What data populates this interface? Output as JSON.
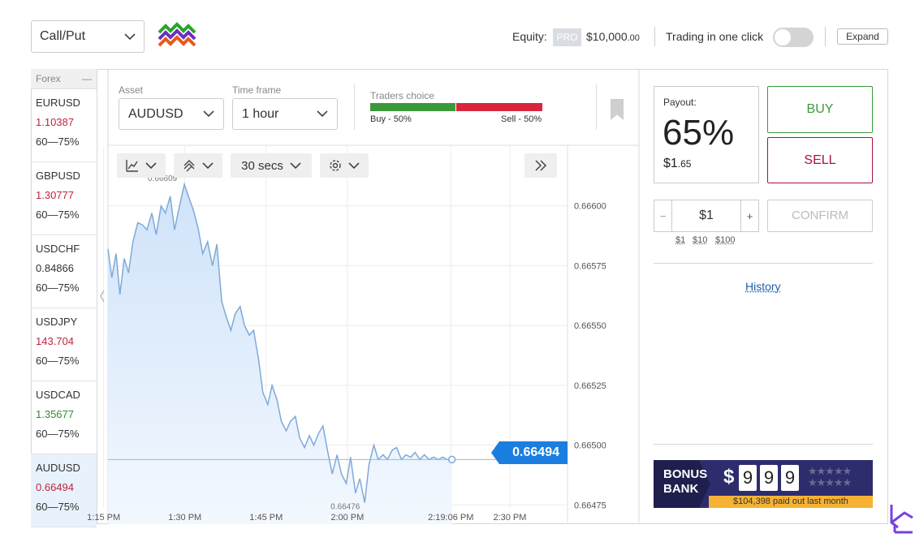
{
  "header": {
    "mode_select": "Call/Put",
    "equity_label": "Equity:",
    "pro_badge": "PRO",
    "equity_main": "$10,000",
    "equity_cents": ".00",
    "trading_one_click_label": "Trading in one click",
    "trading_one_click_on": false,
    "expand_label": "Expand"
  },
  "sidebar": {
    "group_label": "Forex",
    "collapse_glyph": "—",
    "pairs": [
      {
        "symbol": "EURUSD",
        "price": "1.10387",
        "price_color": "#c0243c",
        "range": "60—75%"
      },
      {
        "symbol": "GBPUSD",
        "price": "1.30777",
        "price_color": "#c0243c",
        "range": "60—75%"
      },
      {
        "symbol": "USDCHF",
        "price": "0.84866",
        "price_color": "#333333",
        "range": "60—75%"
      },
      {
        "symbol": "USDJPY",
        "price": "143.704",
        "price_color": "#c0243c",
        "range": "60—75%"
      },
      {
        "symbol": "USDCAD",
        "price": "1.35677",
        "price_color": "#2e8b2e",
        "range": "60—75%"
      },
      {
        "symbol": "AUDUSD",
        "price": "0.66494",
        "price_color": "#c0243c",
        "range": "60—75%"
      }
    ]
  },
  "toolbar": {
    "asset_label": "Asset",
    "asset_value": "AUDUSD",
    "timeframe_label": "Time frame",
    "timeframe_value": "1 hour",
    "traders_choice_label": "Traders choice",
    "buy_pct_text": "Buy - 50%",
    "sell_pct_text": "Sell - 50%",
    "buy_pct": 50,
    "sell_pct": 50
  },
  "chart_tools": {
    "interval": "30 secs",
    "chart_type_icon": "line-chart-icon",
    "indicators_icon": "indicators-icon",
    "settings_icon": "gear-icon",
    "forward_icon": "double-chevron-right-icon"
  },
  "chart_data": {
    "type": "area",
    "current_price": "0.66494",
    "current_value": 0.66494,
    "high_label": "0.66609",
    "low_label": "0.66476",
    "y_ticks": [
      "0.66600",
      "0.66575",
      "0.66550",
      "0.66525",
      "0.66500",
      "0.66475"
    ],
    "y_tick_values": [
      0.666,
      0.66575,
      0.6655,
      0.66525,
      0.665,
      0.66475
    ],
    "x_ticks": [
      "1:15 PM",
      "1:30 PM",
      "1:45 PM",
      "2:00 PM",
      "2:19:06 PM",
      "2:30 PM"
    ],
    "x_tick_minutes": [
      15,
      30,
      45,
      60,
      79.1,
      90
    ],
    "ylim": [
      0.66467,
      0.66625
    ],
    "xlim": [
      15.8,
      100.5
    ],
    "series": [
      {
        "x": [
          15.8,
          16.5,
          17.3,
          18.0,
          18.8,
          19.6,
          20.4,
          21.3,
          22.2,
          23.0,
          23.9,
          24.7,
          25.6,
          26.4,
          27.3,
          28.1,
          29.0,
          29.9,
          30.8,
          31.6,
          32.5,
          33.3,
          34.2,
          35.1,
          35.9,
          36.8,
          37.6,
          38.5,
          39.3,
          40.2,
          41.0,
          41.9,
          42.7,
          43.6,
          44.4,
          45.3,
          46.1,
          47.0,
          47.8,
          48.7,
          49.5,
          50.4,
          51.2,
          52.1,
          53.0,
          53.8,
          54.7,
          55.5,
          56.4,
          57.2,
          58.1,
          58.9,
          59.8,
          60.6,
          61.5,
          62.3,
          63.2,
          64.0,
          64.9,
          65.7,
          66.6,
          67.4,
          68.3,
          69.1,
          70.0,
          70.8,
          71.7,
          72.5,
          73.4,
          74.2,
          75.1,
          75.9,
          76.8,
          77.6,
          78.5,
          79.3
        ],
        "y": [
          0.66582,
          0.6657,
          0.6658,
          0.66563,
          0.66578,
          0.66572,
          0.66585,
          0.66593,
          0.66592,
          0.6659,
          0.66597,
          0.66588,
          0.666,
          0.66597,
          0.66604,
          0.6659,
          0.666,
          0.66609,
          0.66603,
          0.66598,
          0.6659,
          0.6658,
          0.66585,
          0.66575,
          0.66584,
          0.6656,
          0.66554,
          0.66548,
          0.66555,
          0.66558,
          0.6655,
          0.66546,
          0.66548,
          0.66536,
          0.66522,
          0.66517,
          0.66525,
          0.66519,
          0.6651,
          0.66506,
          0.6651,
          0.66512,
          0.66503,
          0.66499,
          0.66504,
          0.665,
          0.66505,
          0.66508,
          0.66497,
          0.66488,
          0.66496,
          0.66488,
          0.66484,
          0.66495,
          0.6648,
          0.66486,
          0.66476,
          0.66492,
          0.665,
          0.66494,
          0.66496,
          0.66494,
          0.66498,
          0.66499,
          0.66494,
          0.66496,
          0.66495,
          0.66497,
          0.66494,
          0.66496,
          0.66494,
          0.66495,
          0.66494,
          0.66495,
          0.66494,
          0.66494
        ]
      }
    ]
  },
  "trade_panel": {
    "payout_label": "Payout:",
    "payout_pct": "65%",
    "payout_amt_main": "$1",
    "payout_amt_cents": ".65",
    "buy_label": "BUY",
    "sell_label": "SELL",
    "minus": "−",
    "plus": "+",
    "amount": "$1",
    "confirm_label": "CONFIRM",
    "quick_amounts": [
      "$1",
      "$10",
      "$100"
    ],
    "history_label": "History"
  },
  "bonus": {
    "title_line1": "BONUS",
    "title_line2": "BANK",
    "dollar": "$",
    "digits": [
      "9",
      "9",
      "9"
    ],
    "footer": "$104,398 paid out last month"
  },
  "colors": {
    "accent_blue": "#1a7fe0",
    "buy_green": "#3a9a3a",
    "sell_red": "#a8123a"
  }
}
